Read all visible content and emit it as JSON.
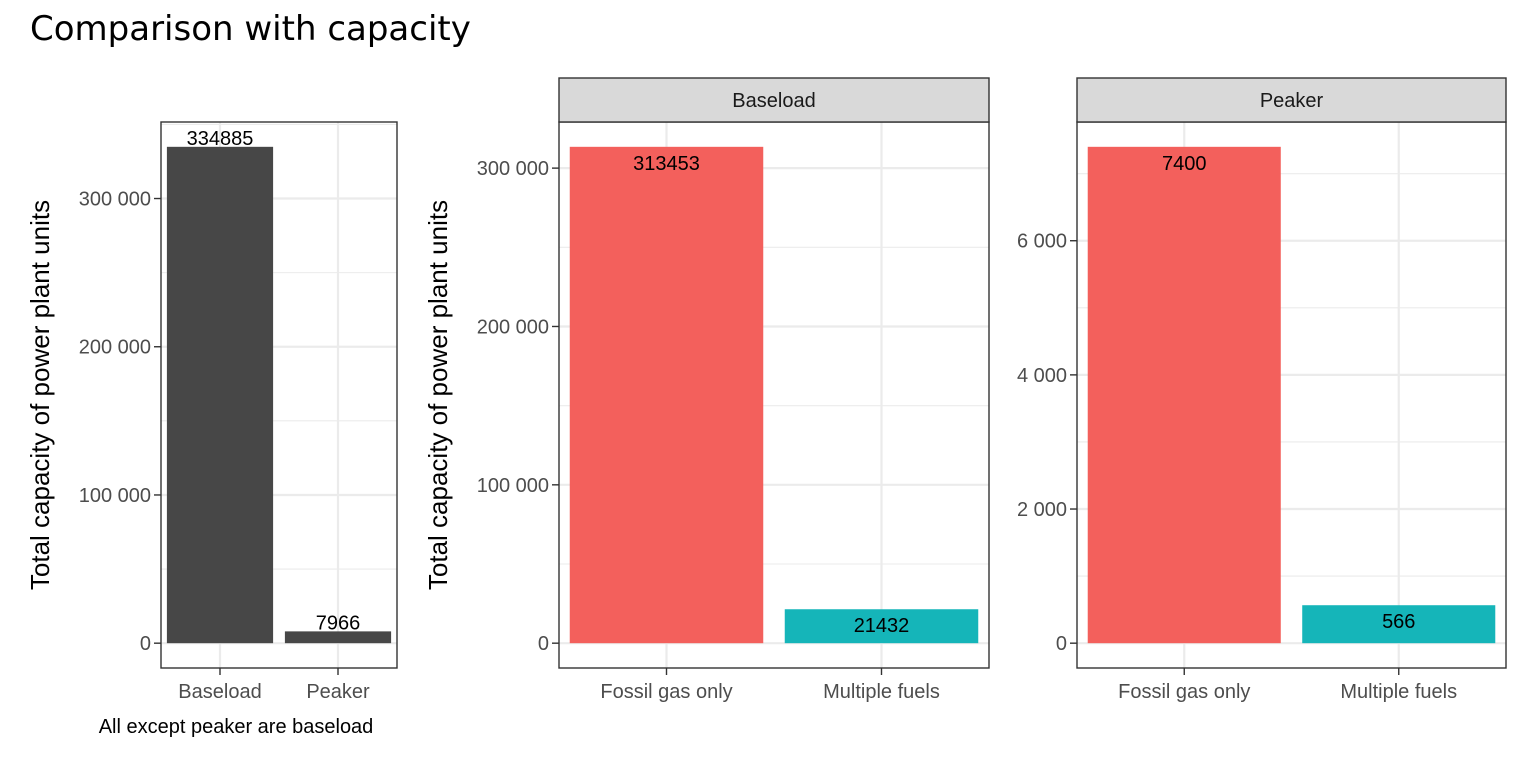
{
  "title": "Comparison with capacity",
  "colors": {
    "overall_bar": "#474747",
    "fossil_gas_only": "#f3605c",
    "multiple_fuels": "#15b5b9"
  },
  "chart_data": [
    {
      "type": "bar",
      "title": "",
      "xlabel": "All except peaker are baseload",
      "ylabel": "Total capacity of power plant units",
      "categories": [
        "Baseload",
        "Peaker"
      ],
      "values": [
        334885,
        7966
      ],
      "data_labels": [
        "334885",
        "7966"
      ],
      "ylim": [
        -16744,
        351629
      ],
      "yticks": [
        0,
        100000,
        200000,
        300000
      ],
      "ytick_labels": [
        "0",
        "100 000",
        "200 000",
        "300 000"
      ],
      "grid": true,
      "legend": "none"
    },
    {
      "type": "bar",
      "title": "",
      "xlabel": "",
      "ylabel": "Total capacity of power plant units",
      "facet_strips": [
        "Baseload",
        "Peaker"
      ],
      "categories": [
        "Fossil gas only",
        "Multiple fuels"
      ],
      "grid": true,
      "legend": "none",
      "facets": [
        {
          "strip": "Baseload",
          "values": [
            313453,
            21432
          ],
          "data_labels": [
            "313453",
            "21432"
          ],
          "ylim": [
            -15673,
            329126
          ],
          "yticks": [
            0,
            100000,
            200000,
            300000
          ],
          "ytick_labels": [
            "0",
            "100 000",
            "200 000",
            "300 000"
          ]
        },
        {
          "strip": "Peaker",
          "values": [
            7400,
            566
          ],
          "data_labels": [
            "7400",
            "566"
          ],
          "ylim": [
            -370,
            7770
          ],
          "yticks": [
            0,
            2000,
            4000,
            6000
          ],
          "ytick_labels": [
            "0",
            "2 000",
            "4 000",
            "6 000"
          ]
        }
      ]
    }
  ]
}
